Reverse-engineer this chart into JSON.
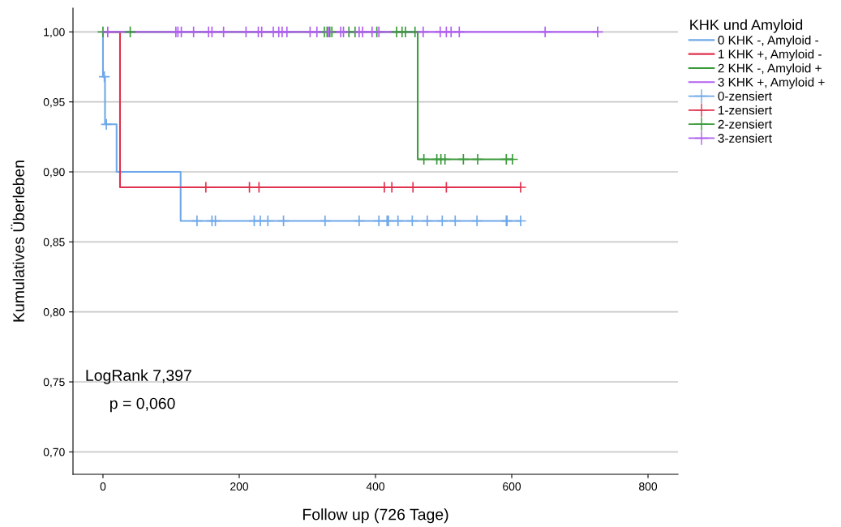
{
  "chart_data": {
    "type": "step",
    "xlabel": "Follow up (726 Tage)",
    "ylabel": "Kumulatives Überleben",
    "legend_title": "KHK und Amyloid",
    "xlim": [
      -44,
      844
    ],
    "ylim": [
      0.684,
      1.017
    ],
    "xticks": [
      0,
      200,
      400,
      600,
      800
    ],
    "yticks": [
      {
        "value": 0.7,
        "label": "0,70"
      },
      {
        "value": 0.75,
        "label": "0,75"
      },
      {
        "value": 0.8,
        "label": "0,80"
      },
      {
        "value": 0.85,
        "label": "0,85"
      },
      {
        "value": 0.9,
        "label": "0,90"
      },
      {
        "value": 0.95,
        "label": "0,95"
      },
      {
        "value": 1.0,
        "label": "1,00"
      }
    ],
    "grid": "y",
    "legend": "right",
    "annotations": [
      "LogRank 7,397",
      "p = 0,060"
    ],
    "series": [
      {
        "name": "0 KHK -, Amyloid -",
        "color": "#6fa8e8",
        "x": [
          0,
          0,
          3,
          20,
          114,
          613
        ],
        "values": [
          1.0,
          0.968,
          0.934,
          0.9,
          0.865,
          0.865
        ]
      },
      {
        "name": "1 KHK +, Amyloid -",
        "color": "#e0314f",
        "x": [
          0,
          25,
          613
        ],
        "values": [
          1.0,
          0.889,
          0.889
        ]
      },
      {
        "name": "2 KHK -, Amyloid +",
        "color": "#3a9a3a",
        "x": [
          0,
          462,
          601
        ],
        "values": [
          1.0,
          0.909,
          0.909
        ]
      },
      {
        "name": "3 KHK +, Amyloid +",
        "color": "#b060f0",
        "x": [
          0,
          726
        ],
        "values": [
          1.0,
          1.0
        ]
      },
      {
        "name": "0-zensiert",
        "type": "scatter",
        "marker": "cross",
        "color": "#6fa8e8",
        "x": [
          2,
          5,
          138,
          160,
          165,
          222,
          231,
          242,
          265,
          326,
          376,
          405,
          417,
          419,
          433,
          454,
          476,
          498,
          517,
          549,
          592,
          593,
          613
        ],
        "values": [
          0.968,
          0.934,
          0.865,
          0.865,
          0.865,
          0.865,
          0.865,
          0.865,
          0.865,
          0.865,
          0.865,
          0.865,
          0.865,
          0.865,
          0.865,
          0.865,
          0.865,
          0.865,
          0.865,
          0.865,
          0.865,
          0.865,
          0.865
        ]
      },
      {
        "name": "1-zensiert",
        "type": "scatter",
        "marker": "cross",
        "color": "#e0314f",
        "x": [
          151,
          215,
          229,
          413,
          424,
          455,
          504,
          613
        ],
        "values": [
          0.889,
          0.889,
          0.889,
          0.889,
          0.889,
          0.889,
          0.889,
          0.889
        ]
      },
      {
        "name": "2-zensiert",
        "type": "scatter",
        "marker": "cross",
        "color": "#3a9a3a",
        "x": [
          0,
          40,
          325,
          329,
          333,
          336,
          361,
          370,
          402,
          431,
          439,
          444,
          458,
          471,
          490,
          496,
          502,
          529,
          550,
          592,
          601
        ],
        "values": [
          1.0,
          1.0,
          1.0,
          1.0,
          1.0,
          1.0,
          1.0,
          1.0,
          1.0,
          1.0,
          1.0,
          1.0,
          1.0,
          0.909,
          0.909,
          0.909,
          0.909,
          0.909,
          0.909,
          0.909,
          0.909
        ]
      },
      {
        "name": "3-zensiert",
        "type": "scatter",
        "marker": "cross",
        "color": "#b060f0",
        "x": [
          7,
          107,
          110,
          115,
          133,
          155,
          160,
          177,
          210,
          228,
          233,
          250,
          258,
          263,
          270,
          304,
          314,
          331,
          349,
          353,
          376,
          381,
          395,
          405,
          470,
          495,
          504,
          511,
          523,
          649,
          726
        ],
        "values": [
          1.0,
          1.0,
          1.0,
          1.0,
          1.0,
          1.0,
          1.0,
          1.0,
          1.0,
          1.0,
          1.0,
          1.0,
          1.0,
          1.0,
          1.0,
          1.0,
          1.0,
          1.0,
          1.0,
          1.0,
          1.0,
          1.0,
          1.0,
          1.0,
          1.0,
          1.0,
          1.0,
          1.0,
          1.0,
          1.0,
          1.0
        ]
      }
    ]
  }
}
